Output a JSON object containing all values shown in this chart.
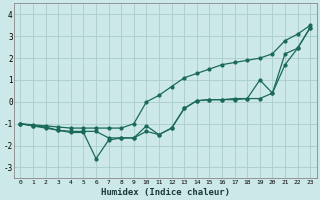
{
  "xlabel": "Humidex (Indice chaleur)",
  "background_color": "#cde8e8",
  "grid_color": "#aacccc",
  "line_color": "#1a6a5a",
  "xlim": [
    -0.5,
    23.5
  ],
  "ylim": [
    -3.5,
    4.5
  ],
  "yticks": [
    -3,
    -2,
    -1,
    0,
    1,
    2,
    3,
    4
  ],
  "xticks": [
    0,
    1,
    2,
    3,
    4,
    5,
    6,
    7,
    8,
    9,
    10,
    11,
    12,
    13,
    14,
    15,
    16,
    17,
    18,
    19,
    20,
    21,
    22,
    23
  ],
  "line1_x": [
    0,
    1,
    2,
    3,
    4,
    5,
    6,
    7,
    8,
    9,
    10,
    11,
    12,
    13,
    14,
    15,
    16,
    17,
    18,
    19,
    20,
    21,
    22,
    23
  ],
  "line1_y": [
    -1.0,
    -1.1,
    -1.2,
    -1.3,
    -1.4,
    -1.4,
    -2.6,
    -1.75,
    -1.65,
    -1.65,
    -1.1,
    -1.5,
    -1.2,
    -0.3,
    0.05,
    0.1,
    0.1,
    0.1,
    0.15,
    1.0,
    0.4,
    2.2,
    2.45,
    3.4
  ],
  "line2_x": [
    0,
    1,
    2,
    3,
    4,
    5,
    6,
    7,
    8,
    9,
    10,
    11,
    12,
    13,
    14,
    15,
    16,
    17,
    18,
    19,
    20,
    21,
    22,
    23
  ],
  "line2_y": [
    -1.0,
    -1.05,
    -1.1,
    -1.15,
    -1.2,
    -1.2,
    -1.2,
    -1.2,
    -1.2,
    -1.0,
    0.0,
    0.3,
    0.7,
    1.1,
    1.3,
    1.5,
    1.7,
    1.8,
    1.9,
    2.0,
    2.2,
    2.8,
    3.1,
    3.5
  ],
  "line3_x": [
    0,
    1,
    2,
    3,
    4,
    5,
    6,
    7,
    8,
    9,
    10,
    11,
    12,
    13,
    14,
    15,
    16,
    17,
    18,
    19,
    20,
    21,
    22,
    23
  ],
  "line3_y": [
    -1.0,
    -1.1,
    -1.15,
    -1.3,
    -1.35,
    -1.35,
    -1.35,
    -1.65,
    -1.65,
    -1.65,
    -1.35,
    -1.5,
    -1.2,
    -0.3,
    0.05,
    0.1,
    0.1,
    0.15,
    0.15,
    0.15,
    0.4,
    1.7,
    2.45,
    3.4
  ]
}
